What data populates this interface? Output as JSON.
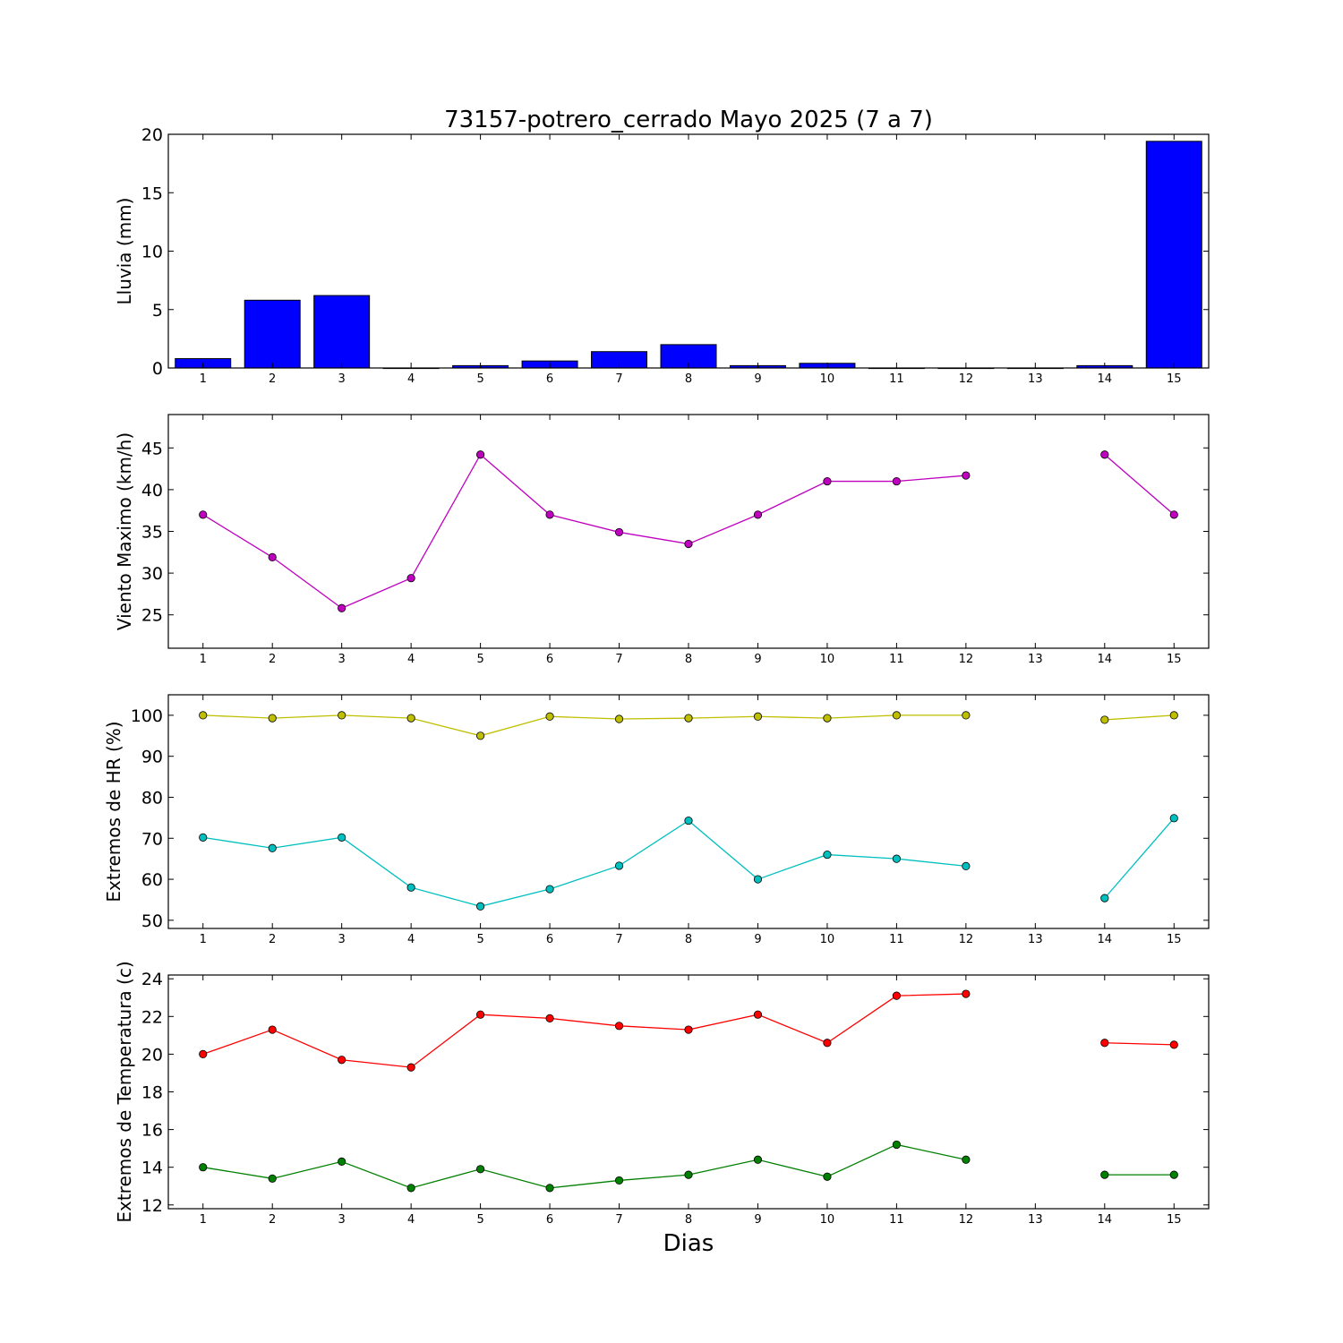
{
  "figure": {
    "title": "73157-potrero_cerrado Mayo 2025  (7 a 7)",
    "xlabel": "Dias"
  },
  "chart_data": [
    {
      "type": "bar",
      "ylabel": "Lluvia (mm)",
      "ylim": [
        0,
        20
      ],
      "yticks": [
        0,
        5,
        10,
        15,
        20
      ],
      "xticks": [
        1,
        2,
        3,
        4,
        5,
        6,
        7,
        8,
        9,
        10,
        11,
        12,
        13,
        14,
        15
      ],
      "categories": [
        1,
        2,
        3,
        4,
        5,
        6,
        7,
        8,
        9,
        10,
        11,
        12,
        13,
        14,
        15
      ],
      "values": [
        0.8,
        5.8,
        6.2,
        0,
        0.2,
        0.6,
        1.4,
        2.0,
        0.2,
        0.4,
        0,
        0,
        0,
        0.2,
        19.4
      ],
      "color": "#0000ff",
      "grid": false
    },
    {
      "type": "line",
      "ylabel": "Viento Maximo (km/h)",
      "ylim": [
        21,
        49
      ],
      "yticks": [
        25,
        30,
        35,
        40,
        45
      ],
      "xticks": [
        1,
        2,
        3,
        4,
        5,
        6,
        7,
        8,
        9,
        10,
        11,
        12,
        13,
        14,
        15
      ],
      "series": [
        {
          "x": [
            1,
            2,
            3,
            4,
            5,
            6,
            7,
            8,
            9,
            10,
            11,
            12,
            13,
            14,
            15
          ],
          "y": [
            37.0,
            31.9,
            25.8,
            29.4,
            44.2,
            37.0,
            34.9,
            33.5,
            37.0,
            41.0,
            41.0,
            41.7,
            null,
            44.2,
            37.0
          ],
          "color": "#bf00bf"
        }
      ],
      "grid": false
    },
    {
      "type": "line",
      "ylabel": "Extremos de HR (%)",
      "ylim": [
        48,
        105
      ],
      "yticks": [
        50,
        60,
        70,
        80,
        90,
        100
      ],
      "xticks": [
        1,
        2,
        3,
        4,
        5,
        6,
        7,
        8,
        9,
        10,
        11,
        12,
        13,
        14,
        15
      ],
      "series": [
        {
          "x": [
            1,
            2,
            3,
            4,
            5,
            6,
            7,
            8,
            9,
            10,
            11,
            12,
            13,
            14,
            15
          ],
          "y": [
            100,
            99.3,
            100,
            99.3,
            95,
            99.7,
            99.1,
            99.3,
            99.7,
            99.3,
            100,
            100,
            null,
            98.9,
            100
          ],
          "color": "#bfbf00"
        },
        {
          "x": [
            1,
            2,
            3,
            4,
            5,
            6,
            7,
            8,
            9,
            10,
            11,
            12,
            13,
            14,
            15
          ],
          "y": [
            70.2,
            67.6,
            70.2,
            58,
            53.4,
            57.6,
            63.3,
            74.3,
            60,
            66,
            65,
            63.2,
            null,
            55.4,
            74.9
          ],
          "color": "#00bfbf"
        }
      ],
      "grid": false
    },
    {
      "type": "line",
      "ylabel": "Extremos de Temperatura (c)",
      "ylim": [
        11.8,
        24.2
      ],
      "yticks": [
        12,
        14,
        16,
        18,
        20,
        22,
        24
      ],
      "xticks": [
        1,
        2,
        3,
        4,
        5,
        6,
        7,
        8,
        9,
        10,
        11,
        12,
        13,
        14,
        15
      ],
      "series": [
        {
          "x": [
            1,
            2,
            3,
            4,
            5,
            6,
            7,
            8,
            9,
            10,
            11,
            12,
            13,
            14,
            15
          ],
          "y": [
            20.0,
            21.3,
            19.7,
            19.3,
            22.1,
            21.9,
            21.5,
            21.3,
            22.1,
            20.6,
            23.1,
            23.2,
            null,
            20.6,
            20.5
          ],
          "color": "#ff0000"
        },
        {
          "x": [
            1,
            2,
            3,
            4,
            5,
            6,
            7,
            8,
            9,
            10,
            11,
            12,
            13,
            14,
            15
          ],
          "y": [
            14.0,
            13.4,
            14.3,
            12.9,
            13.9,
            12.9,
            13.3,
            13.6,
            14.4,
            13.5,
            15.2,
            14.4,
            null,
            13.6,
            13.6
          ],
          "color": "#008000"
        }
      ],
      "grid": false
    }
  ]
}
